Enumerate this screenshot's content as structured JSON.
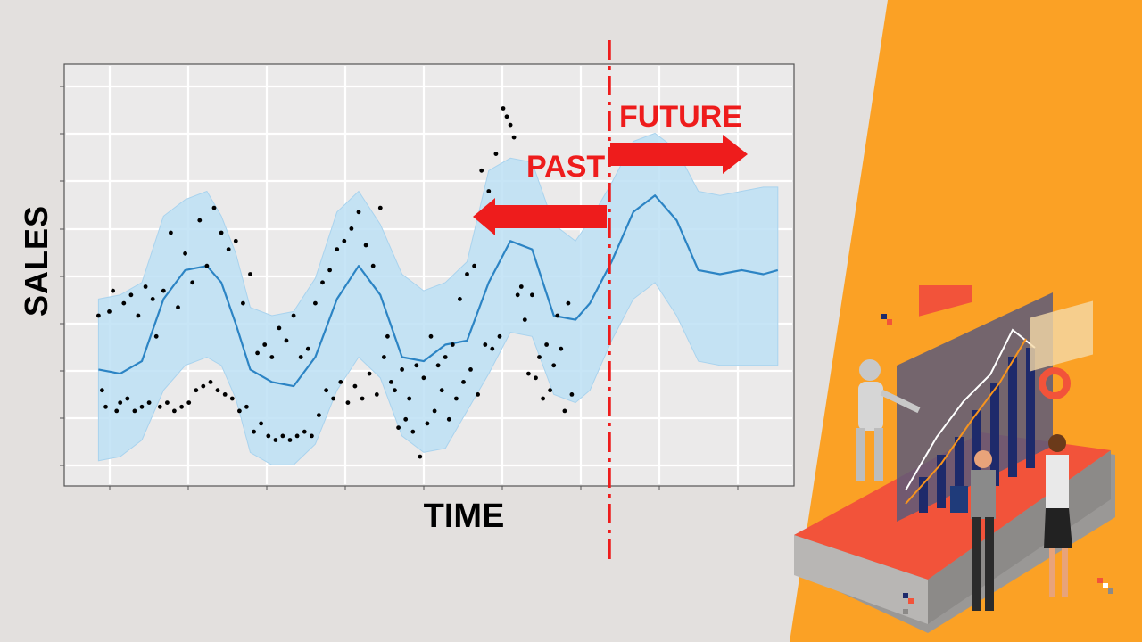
{
  "chart_data": {
    "type": "scatter",
    "title": "",
    "xlabel": "TIME",
    "ylabel": "SALES",
    "xlim": [
      0,
      1
    ],
    "ylim": [
      0,
      1
    ],
    "grid": true,
    "axis_ticks_labeled": false,
    "forecast_split_x": 0.7,
    "annotations": {
      "past": "PAST",
      "future": "FUTURE"
    },
    "trend_line": {
      "x": [
        0.04,
        0.07,
        0.1,
        0.13,
        0.16,
        0.19,
        0.21,
        0.23,
        0.25,
        0.28,
        0.31,
        0.34,
        0.37,
        0.4,
        0.43,
        0.46,
        0.49,
        0.52,
        0.55,
        0.58,
        0.61,
        0.64,
        0.67,
        0.7,
        0.72,
        0.75,
        0.78,
        0.81,
        0.84,
        0.87,
        0.9,
        0.93,
        0.96,
        0.98
      ],
      "y": [
        0.27,
        0.26,
        0.29,
        0.44,
        0.51,
        0.52,
        0.48,
        0.38,
        0.27,
        0.24,
        0.23,
        0.3,
        0.44,
        0.52,
        0.45,
        0.3,
        0.29,
        0.33,
        0.34,
        0.48,
        0.58,
        0.56,
        0.4,
        0.39,
        0.43,
        0.53,
        0.65,
        0.69,
        0.63,
        0.51,
        0.5,
        0.51,
        0.5,
        0.51
      ]
    },
    "band_upper": [
      0.44,
      0.45,
      0.48,
      0.64,
      0.68,
      0.7,
      0.64,
      0.55,
      0.42,
      0.4,
      0.41,
      0.49,
      0.65,
      0.7,
      0.62,
      0.5,
      0.46,
      0.48,
      0.53,
      0.75,
      0.78,
      0.77,
      0.62,
      0.58,
      0.63,
      0.72,
      0.82,
      0.84,
      0.8,
      0.7,
      0.69,
      0.7,
      0.71,
      0.71
    ],
    "band_lower": [
      0.05,
      0.06,
      0.1,
      0.22,
      0.28,
      0.3,
      0.28,
      0.2,
      0.07,
      0.04,
      0.04,
      0.09,
      0.22,
      0.3,
      0.25,
      0.11,
      0.07,
      0.08,
      0.17,
      0.26,
      0.36,
      0.35,
      0.21,
      0.19,
      0.22,
      0.34,
      0.44,
      0.48,
      0.4,
      0.29,
      0.28,
      0.28,
      0.28,
      0.28
    ],
    "observed_points": [
      [
        0.04,
        0.4
      ],
      [
        0.045,
        0.22
      ],
      [
        0.05,
        0.18
      ],
      [
        0.055,
        0.41
      ],
      [
        0.06,
        0.46
      ],
      [
        0.065,
        0.17
      ],
      [
        0.07,
        0.19
      ],
      [
        0.075,
        0.43
      ],
      [
        0.08,
        0.2
      ],
      [
        0.085,
        0.45
      ],
      [
        0.09,
        0.17
      ],
      [
        0.095,
        0.4
      ],
      [
        0.1,
        0.18
      ],
      [
        0.105,
        0.47
      ],
      [
        0.11,
        0.19
      ],
      [
        0.115,
        0.44
      ],
      [
        0.12,
        0.35
      ],
      [
        0.125,
        0.18
      ],
      [
        0.13,
        0.46
      ],
      [
        0.135,
        0.19
      ],
      [
        0.14,
        0.6
      ],
      [
        0.145,
        0.17
      ],
      [
        0.15,
        0.42
      ],
      [
        0.155,
        0.18
      ],
      [
        0.16,
        0.55
      ],
      [
        0.165,
        0.19
      ],
      [
        0.17,
        0.48
      ],
      [
        0.175,
        0.22
      ],
      [
        0.18,
        0.63
      ],
      [
        0.185,
        0.23
      ],
      [
        0.19,
        0.52
      ],
      [
        0.195,
        0.24
      ],
      [
        0.2,
        0.66
      ],
      [
        0.205,
        0.22
      ],
      [
        0.21,
        0.6
      ],
      [
        0.215,
        0.21
      ],
      [
        0.22,
        0.56
      ],
      [
        0.225,
        0.2
      ],
      [
        0.23,
        0.58
      ],
      [
        0.235,
        0.17
      ],
      [
        0.24,
        0.43
      ],
      [
        0.245,
        0.18
      ],
      [
        0.25,
        0.5
      ],
      [
        0.255,
        0.12
      ],
      [
        0.26,
        0.31
      ],
      [
        0.265,
        0.14
      ],
      [
        0.27,
        0.33
      ],
      [
        0.275,
        0.11
      ],
      [
        0.28,
        0.3
      ],
      [
        0.285,
        0.1
      ],
      [
        0.29,
        0.37
      ],
      [
        0.295,
        0.11
      ],
      [
        0.3,
        0.34
      ],
      [
        0.305,
        0.1
      ],
      [
        0.31,
        0.4
      ],
      [
        0.315,
        0.11
      ],
      [
        0.32,
        0.3
      ],
      [
        0.325,
        0.12
      ],
      [
        0.33,
        0.32
      ],
      [
        0.335,
        0.11
      ],
      [
        0.34,
        0.43
      ],
      [
        0.345,
        0.16
      ],
      [
        0.35,
        0.48
      ],
      [
        0.355,
        0.22
      ],
      [
        0.36,
        0.51
      ],
      [
        0.365,
        0.2
      ],
      [
        0.37,
        0.56
      ],
      [
        0.375,
        0.24
      ],
      [
        0.38,
        0.58
      ],
      [
        0.385,
        0.19
      ],
      [
        0.39,
        0.61
      ],
      [
        0.395,
        0.23
      ],
      [
        0.4,
        0.65
      ],
      [
        0.405,
        0.2
      ],
      [
        0.41,
        0.57
      ],
      [
        0.415,
        0.26
      ],
      [
        0.42,
        0.52
      ],
      [
        0.425,
        0.21
      ],
      [
        0.43,
        0.66
      ],
      [
        0.435,
        0.3
      ],
      [
        0.44,
        0.35
      ],
      [
        0.445,
        0.24
      ],
      [
        0.45,
        0.22
      ],
      [
        0.455,
        0.13
      ],
      [
        0.46,
        0.27
      ],
      [
        0.465,
        0.15
      ],
      [
        0.47,
        0.2
      ],
      [
        0.475,
        0.12
      ],
      [
        0.48,
        0.28
      ],
      [
        0.485,
        0.06
      ],
      [
        0.49,
        0.25
      ],
      [
        0.495,
        0.14
      ],
      [
        0.5,
        0.35
      ],
      [
        0.505,
        0.17
      ],
      [
        0.51,
        0.28
      ],
      [
        0.515,
        0.22
      ],
      [
        0.52,
        0.3
      ],
      [
        0.525,
        0.15
      ],
      [
        0.53,
        0.33
      ],
      [
        0.535,
        0.2
      ],
      [
        0.54,
        0.44
      ],
      [
        0.545,
        0.24
      ],
      [
        0.55,
        0.5
      ],
      [
        0.555,
        0.27
      ],
      [
        0.56,
        0.52
      ],
      [
        0.565,
        0.21
      ],
      [
        0.57,
        0.75
      ],
      [
        0.575,
        0.33
      ],
      [
        0.58,
        0.7
      ],
      [
        0.585,
        0.32
      ],
      [
        0.59,
        0.79
      ],
      [
        0.595,
        0.35
      ],
      [
        0.6,
        0.9
      ],
      [
        0.605,
        0.88
      ],
      [
        0.61,
        0.86
      ],
      [
        0.615,
        0.83
      ],
      [
        0.62,
        0.45
      ],
      [
        0.625,
        0.47
      ],
      [
        0.63,
        0.39
      ],
      [
        0.635,
        0.26
      ],
      [
        0.64,
        0.45
      ],
      [
        0.645,
        0.25
      ],
      [
        0.65,
        0.3
      ],
      [
        0.655,
        0.2
      ],
      [
        0.66,
        0.33
      ],
      [
        0.665,
        0.22
      ],
      [
        0.67,
        0.28
      ],
      [
        0.675,
        0.4
      ],
      [
        0.68,
        0.32
      ],
      [
        0.685,
        0.17
      ],
      [
        0.69,
        0.43
      ],
      [
        0.695,
        0.21
      ]
    ]
  },
  "colors": {
    "background": "#e3e0de",
    "accent_orange": "#fba125",
    "band_fill": "#bde0f5",
    "trend_line": "#2c84c4",
    "annotation_red": "#ee1c1c",
    "grid": "#ffffff",
    "points": "#000000"
  },
  "illustration": {
    "description_icon": "robot-and-analysts-dashboard-illustration"
  }
}
